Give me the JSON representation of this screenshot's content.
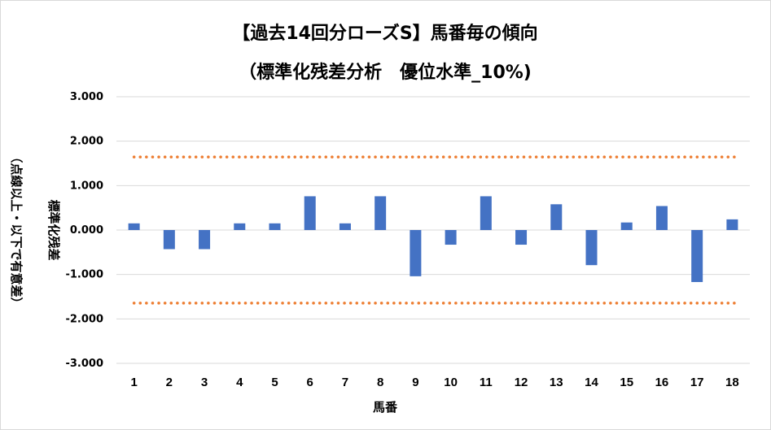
{
  "chart_data": {
    "type": "bar",
    "title": "【過去14回分ローズS】馬番毎の傾向",
    "subtitle": "（標準化残差分析　優位水準_10%)",
    "xlabel": "馬番",
    "ylabel": "標準化残差",
    "ylabel_note": "（点線以上・以下で有意差）",
    "categories": [
      "1",
      "2",
      "3",
      "4",
      "5",
      "6",
      "7",
      "8",
      "9",
      "10",
      "11",
      "12",
      "13",
      "14",
      "15",
      "16",
      "17",
      "18"
    ],
    "values": [
      0.15,
      -0.43,
      -0.43,
      0.15,
      0.15,
      0.76,
      0.15,
      0.76,
      -1.04,
      -0.33,
      0.76,
      -0.33,
      0.58,
      -0.79,
      0.17,
      0.54,
      -1.17,
      0.24
    ],
    "ylim": [
      -3,
      3
    ],
    "yticks": [
      "-3.000",
      "-2.000",
      "-1.000",
      "0.000",
      "1.000",
      "2.000",
      "3.000"
    ],
    "thresholds": [
      1.645,
      -1.645
    ],
    "grid": true,
    "colors": {
      "bar": "#4472c4",
      "threshold": "#ed7d31",
      "grid": "#d9d9d9"
    }
  }
}
